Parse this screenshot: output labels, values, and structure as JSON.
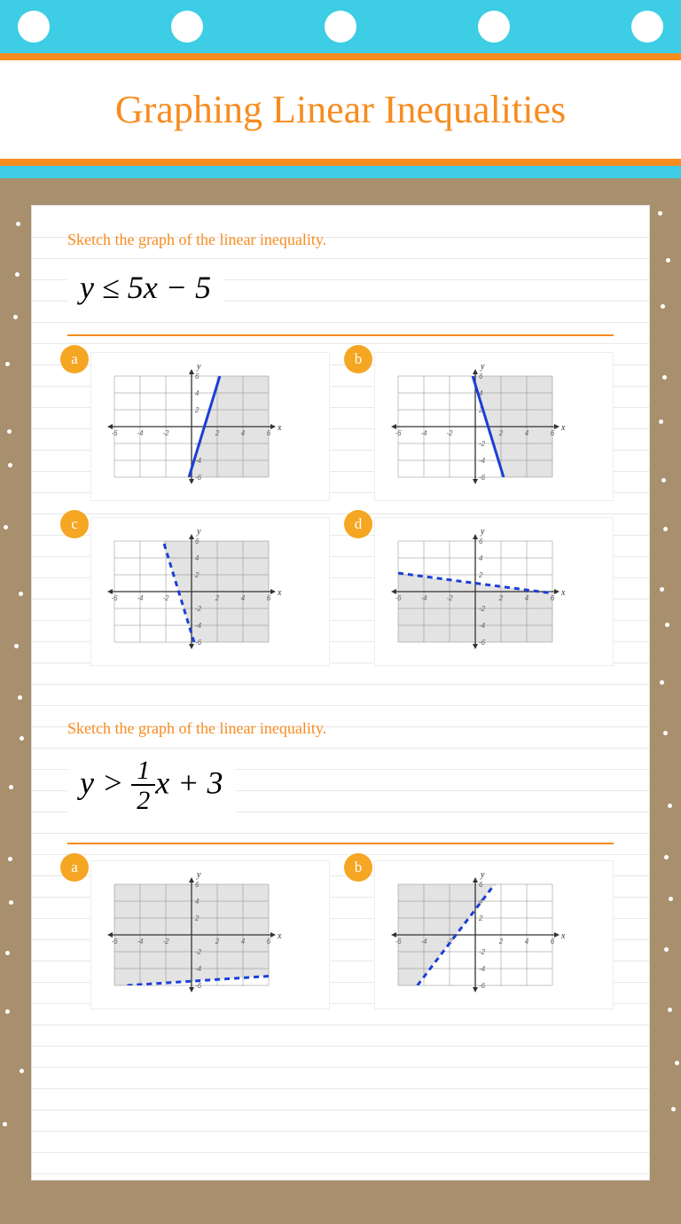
{
  "title": "Graphing Linear Inequalities",
  "colors": {
    "accent": "#f78c1f",
    "band": "#3dcde4",
    "badge": "#f5a623",
    "line": "#1b3fd6",
    "shade": "#cccccc",
    "paper": "#ffffff",
    "cork": "#a8906f"
  },
  "questions": [
    {
      "prompt": "Sketch the graph of the linear inequality.",
      "equation": "y ≤ 5x − 5",
      "options": [
        {
          "label": "a",
          "slope": 5,
          "intercept": -5,
          "style": "solid",
          "shade": "right"
        },
        {
          "label": "b",
          "slope": -5,
          "intercept": 5,
          "style": "solid",
          "shade": "right"
        },
        {
          "label": "c",
          "slope": -5,
          "intercept": -5,
          "style": "dashed",
          "shade": "right"
        },
        {
          "label": "d",
          "slope": -0.2,
          "intercept": 1,
          "style": "dashed",
          "shade": "below"
        }
      ],
      "axes": {
        "xmin": -6,
        "xmax": 6,
        "ymin": -6,
        "ymax": 6,
        "tick_step": 2
      }
    },
    {
      "prompt": "Sketch the graph of the linear inequality.",
      "equation_html": "y > (1/2)x + 3",
      "options": [
        {
          "label": "a",
          "slope": 0.1,
          "intercept": -5.5,
          "style": "dashed",
          "shade": "above"
        },
        {
          "label": "b",
          "slope": 2,
          "intercept": 3,
          "style": "dashed",
          "shade": "left"
        }
      ],
      "axes": {
        "xmin": -6,
        "xmax": 6,
        "ymin": -6,
        "ymax": 6,
        "tick_step": 2
      }
    }
  ]
}
